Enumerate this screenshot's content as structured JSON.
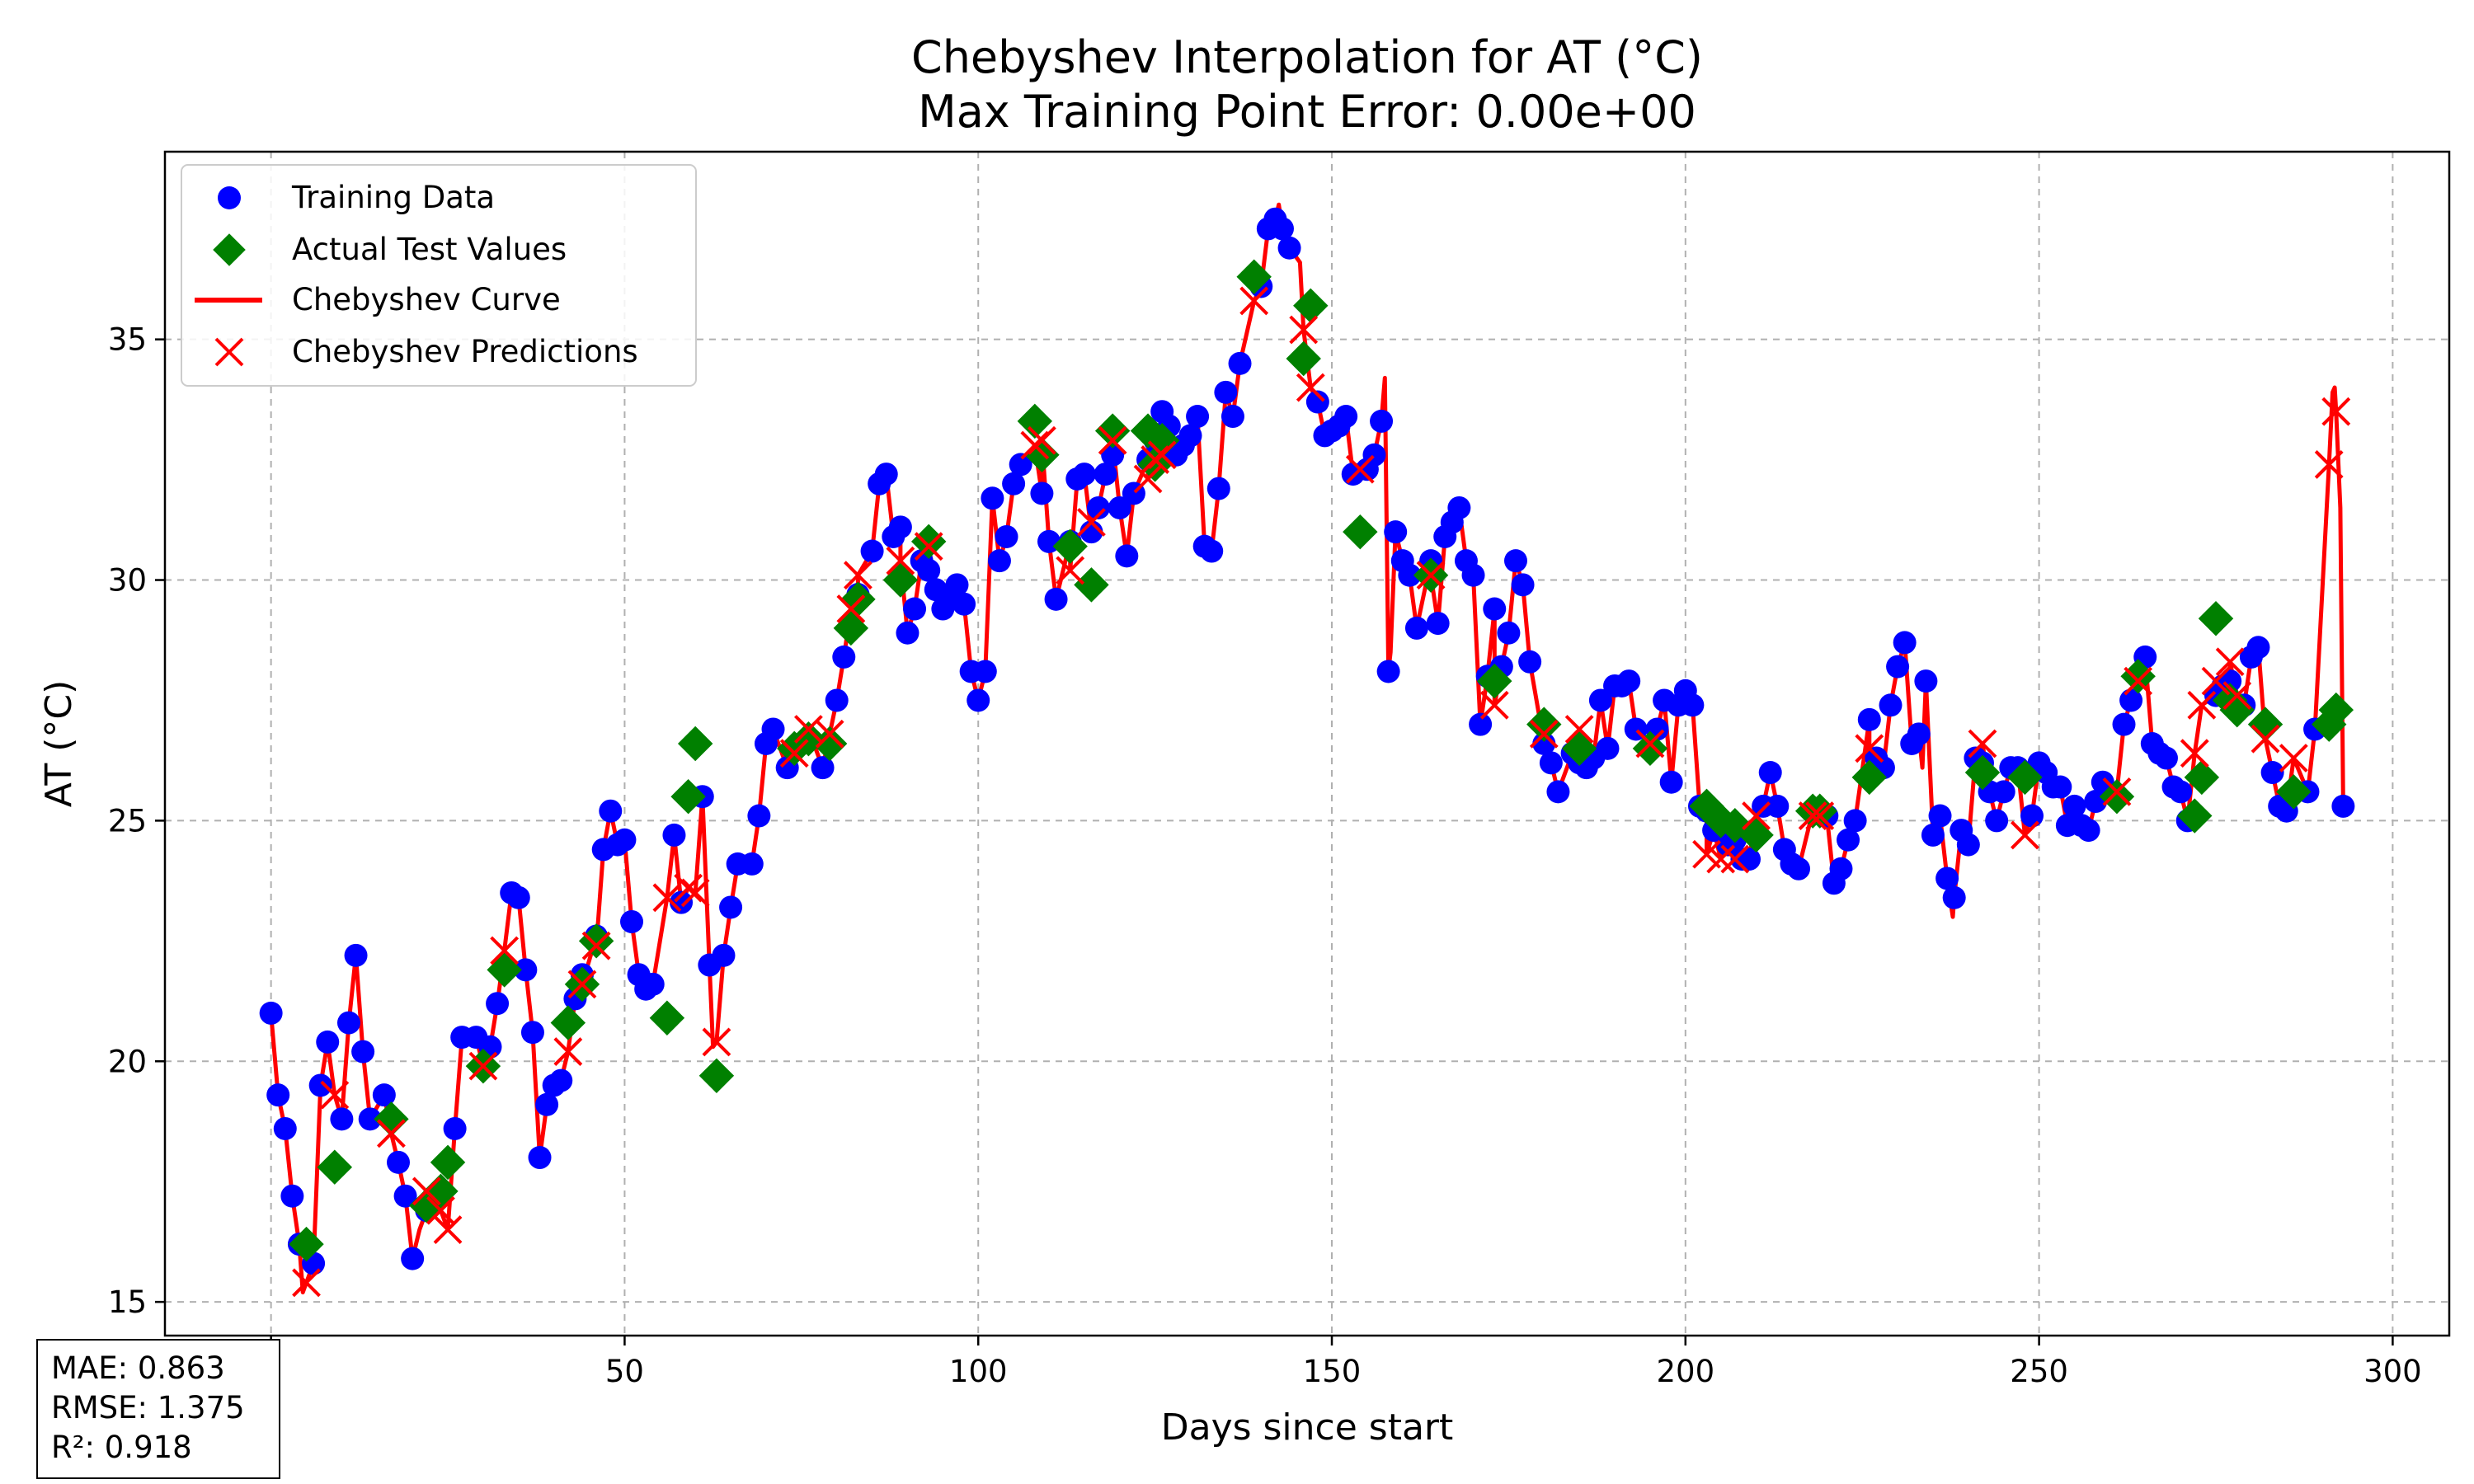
{
  "chart_data": {
    "type": "line",
    "title": "Chebyshev Interpolation for AT (°C)",
    "subtitle": "Max Training Point Error: 0.00e+00",
    "xlabel": "Days since start",
    "ylabel": "AT (°C)",
    "xlim": [
      -15,
      308
    ],
    "ylim": [
      14.3,
      38.9
    ],
    "xticks": [
      0,
      50,
      100,
      150,
      200,
      250,
      300
    ],
    "xtick_labels": [
      "0",
      "50",
      "100",
      "150",
      "200",
      "250",
      "300"
    ],
    "yticks": [
      15,
      20,
      25,
      30,
      35
    ],
    "ytick_labels": [
      "15",
      "20",
      "25",
      "30",
      "35"
    ],
    "grid": true,
    "legend_position": "top-left",
    "legend": [
      "Training Data",
      "Actual Test Values",
      "Chebyshev Curve",
      "Chebyshev Predictions"
    ],
    "colors": {
      "training": "#0000ff",
      "test": "#008000",
      "curve": "#ff0000",
      "predictions": "#ff0000",
      "grid": "#b0b0b0"
    },
    "training_data": [
      [
        0,
        21.0
      ],
      [
        1,
        19.3
      ],
      [
        2,
        18.6
      ],
      [
        3,
        17.2
      ],
      [
        4,
        16.2
      ],
      [
        6,
        15.8
      ],
      [
        7,
        19.5
      ],
      [
        8,
        20.4
      ],
      [
        10,
        18.8
      ],
      [
        11,
        20.8
      ],
      [
        12,
        22.2
      ],
      [
        13,
        20.2
      ],
      [
        14,
        18.8
      ],
      [
        16,
        19.3
      ],
      [
        18,
        17.9
      ],
      [
        19,
        17.2
      ],
      [
        20,
        15.9
      ],
      [
        22,
        16.9
      ],
      [
        24,
        17.2
      ],
      [
        26,
        18.6
      ],
      [
        27,
        20.5
      ],
      [
        29,
        20.5
      ],
      [
        31,
        20.3
      ],
      [
        32,
        21.2
      ],
      [
        34,
        23.5
      ],
      [
        35,
        23.4
      ],
      [
        36,
        21.9
      ],
      [
        37,
        20.6
      ],
      [
        38,
        18.0
      ],
      [
        39,
        19.1
      ],
      [
        40,
        19.5
      ],
      [
        41,
        19.6
      ],
      [
        43,
        21.3
      ],
      [
        44,
        21.8
      ],
      [
        46,
        22.6
      ],
      [
        47,
        24.4
      ],
      [
        48,
        25.2
      ],
      [
        49,
        24.5
      ],
      [
        50,
        24.6
      ],
      [
        51,
        22.9
      ],
      [
        52,
        21.8
      ],
      [
        53,
        21.5
      ],
      [
        54,
        21.6
      ],
      [
        57,
        24.7
      ],
      [
        58,
        23.3
      ],
      [
        61,
        25.5
      ],
      [
        62,
        22.0
      ],
      [
        64,
        22.2
      ],
      [
        65,
        23.2
      ],
      [
        66,
        24.1
      ],
      [
        68,
        24.1
      ],
      [
        69,
        25.1
      ],
      [
        70,
        26.6
      ],
      [
        71,
        26.9
      ],
      [
        73,
        26.1
      ],
      [
        74,
        26.5
      ],
      [
        78,
        26.1
      ],
      [
        80,
        27.5
      ],
      [
        81,
        28.4
      ],
      [
        83,
        29.7
      ],
      [
        85,
        30.6
      ],
      [
        86,
        32.0
      ],
      [
        87,
        32.2
      ],
      [
        88,
        30.9
      ],
      [
        89,
        31.1
      ],
      [
        90,
        28.9
      ],
      [
        91,
        29.4
      ],
      [
        92,
        30.4
      ],
      [
        93,
        30.2
      ],
      [
        94,
        29.8
      ],
      [
        95,
        29.4
      ],
      [
        96,
        29.7
      ],
      [
        97,
        29.9
      ],
      [
        98,
        29.5
      ],
      [
        99,
        28.1
      ],
      [
        100,
        27.5
      ],
      [
        101,
        28.1
      ],
      [
        102,
        31.7
      ],
      [
        103,
        30.4
      ],
      [
        104,
        30.9
      ],
      [
        105,
        32.0
      ],
      [
        106,
        32.4
      ],
      [
        109,
        31.8
      ],
      [
        110,
        30.8
      ],
      [
        111,
        29.6
      ],
      [
        113,
        30.8
      ],
      [
        114,
        32.1
      ],
      [
        115,
        32.2
      ],
      [
        116,
        31.0
      ],
      [
        117,
        31.5
      ],
      [
        118,
        32.2
      ],
      [
        119,
        32.6
      ],
      [
        120,
        31.5
      ],
      [
        121,
        30.5
      ],
      [
        122,
        31.8
      ],
      [
        124,
        32.5
      ],
      [
        125,
        32.9
      ],
      [
        126,
        33.5
      ],
      [
        127,
        33.2
      ],
      [
        128,
        32.6
      ],
      [
        129,
        32.8
      ],
      [
        130,
        33.0
      ],
      [
        131,
        33.4
      ],
      [
        132,
        30.7
      ],
      [
        133,
        30.6
      ],
      [
        134,
        31.9
      ],
      [
        135,
        33.9
      ],
      [
        136,
        33.4
      ],
      [
        137,
        34.5
      ],
      [
        140,
        36.1
      ],
      [
        141,
        37.3
      ],
      [
        142,
        37.5
      ],
      [
        143,
        37.3
      ],
      [
        144,
        36.9
      ],
      [
        148,
        33.7
      ],
      [
        149,
        33.0
      ],
      [
        150,
        33.1
      ],
      [
        151,
        33.2
      ],
      [
        152,
        33.4
      ],
      [
        153,
        32.2
      ],
      [
        155,
        32.3
      ],
      [
        156,
        32.6
      ],
      [
        157,
        33.3
      ],
      [
        158,
        28.1
      ],
      [
        159,
        31.0
      ],
      [
        160,
        30.4
      ],
      [
        161,
        30.1
      ],
      [
        162,
        29.0
      ],
      [
        164,
        30.4
      ],
      [
        165,
        29.1
      ],
      [
        166,
        30.9
      ],
      [
        167,
        31.2
      ],
      [
        168,
        31.5
      ],
      [
        169,
        30.4
      ],
      [
        170,
        30.1
      ],
      [
        171,
        27.0
      ],
      [
        172,
        28.0
      ],
      [
        173,
        29.4
      ],
      [
        174,
        28.2
      ],
      [
        175,
        28.9
      ],
      [
        176,
        30.4
      ],
      [
        177,
        29.9
      ],
      [
        178,
        28.3
      ],
      [
        180,
        26.6
      ],
      [
        181,
        26.2
      ],
      [
        182,
        25.6
      ],
      [
        184,
        26.4
      ],
      [
        185,
        26.2
      ],
      [
        186,
        26.1
      ],
      [
        187,
        26.3
      ],
      [
        188,
        27.5
      ],
      [
        189,
        26.5
      ],
      [
        190,
        27.8
      ],
      [
        191,
        27.8
      ],
      [
        192,
        27.9
      ],
      [
        193,
        26.9
      ],
      [
        196,
        26.9
      ],
      [
        197,
        27.5
      ],
      [
        198,
        25.8
      ],
      [
        199,
        27.4
      ],
      [
        200,
        27.7
      ],
      [
        201,
        27.4
      ],
      [
        202,
        25.3
      ],
      [
        203,
        25.2
      ],
      [
        204,
        24.8
      ],
      [
        206,
        24.5
      ],
      [
        207,
        24.6
      ],
      [
        208,
        24.2
      ],
      [
        209,
        24.2
      ],
      [
        211,
        25.3
      ],
      [
        212,
        26.0
      ],
      [
        213,
        25.3
      ],
      [
        214,
        24.4
      ],
      [
        215,
        24.1
      ],
      [
        216,
        24.0
      ],
      [
        218,
        25.2
      ],
      [
        220,
        25.1
      ],
      [
        221,
        23.7
      ],
      [
        222,
        24.0
      ],
      [
        223,
        24.6
      ],
      [
        224,
        25.0
      ],
      [
        226,
        27.1
      ],
      [
        227,
        26.3
      ],
      [
        228,
        26.1
      ],
      [
        229,
        27.4
      ],
      [
        230,
        28.2
      ],
      [
        231,
        28.7
      ],
      [
        232,
        26.6
      ],
      [
        233,
        26.8
      ],
      [
        234,
        27.9
      ],
      [
        235,
        24.7
      ],
      [
        236,
        25.1
      ],
      [
        237,
        23.8
      ],
      [
        238,
        23.4
      ],
      [
        239,
        24.8
      ],
      [
        240,
        24.5
      ],
      [
        241,
        26.3
      ],
      [
        242,
        26.2
      ],
      [
        243,
        25.6
      ],
      [
        244,
        25.0
      ],
      [
        245,
        25.6
      ],
      [
        246,
        26.1
      ],
      [
        247,
        26.1
      ],
      [
        249,
        25.1
      ],
      [
        250,
        26.2
      ],
      [
        251,
        26.0
      ],
      [
        252,
        25.7
      ],
      [
        253,
        25.7
      ],
      [
        254,
        24.9
      ],
      [
        255,
        25.3
      ],
      [
        256,
        24.9
      ],
      [
        257,
        24.8
      ],
      [
        258,
        25.4
      ],
      [
        259,
        25.8
      ],
      [
        262,
        27.0
      ],
      [
        263,
        27.5
      ],
      [
        265,
        28.4
      ],
      [
        266,
        26.6
      ],
      [
        267,
        26.4
      ],
      [
        268,
        26.3
      ],
      [
        269,
        25.7
      ],
      [
        270,
        25.6
      ],
      [
        271,
        25.0
      ],
      [
        275,
        27.6
      ],
      [
        276,
        27.8
      ],
      [
        277,
        27.9
      ],
      [
        279,
        27.4
      ],
      [
        280,
        28.4
      ],
      [
        281,
        28.6
      ],
      [
        283,
        26.0
      ],
      [
        284,
        25.3
      ],
      [
        285,
        25.2
      ],
      [
        288,
        25.6
      ],
      [
        289,
        26.9
      ],
      [
        293,
        25.3
      ]
    ],
    "test_values": [
      [
        5,
        16.2
      ],
      [
        9,
        17.8
      ],
      [
        17,
        18.8
      ],
      [
        22,
        17.0
      ],
      [
        24,
        17.3
      ],
      [
        25,
        17.9
      ],
      [
        30,
        19.9
      ],
      [
        33,
        21.9
      ],
      [
        42,
        20.8
      ],
      [
        44,
        21.6
      ],
      [
        46,
        22.5
      ],
      [
        56,
        20.9
      ],
      [
        59,
        25.5
      ],
      [
        60,
        26.6
      ],
      [
        63,
        19.7
      ],
      [
        74,
        26.5
      ],
      [
        76,
        26.7
      ],
      [
        79,
        26.6
      ],
      [
        82,
        29.0
      ],
      [
        83,
        29.6
      ],
      [
        89,
        30.0
      ],
      [
        93,
        30.8
      ],
      [
        108,
        33.3
      ],
      [
        109,
        32.6
      ],
      [
        113,
        30.7
      ],
      [
        116,
        29.9
      ],
      [
        119,
        33.1
      ],
      [
        124,
        33.1
      ],
      [
        125,
        32.4
      ],
      [
        126,
        32.9
      ],
      [
        139,
        36.3
      ],
      [
        146,
        34.6
      ],
      [
        147,
        35.7
      ],
      [
        154,
        31.0
      ],
      [
        164,
        30.1
      ],
      [
        173,
        27.9
      ],
      [
        180,
        27.0
      ],
      [
        185,
        26.5
      ],
      [
        195,
        26.5
      ],
      [
        203,
        25.3
      ],
      [
        205,
        25.0
      ],
      [
        207,
        24.9
      ],
      [
        210,
        24.7
      ],
      [
        218,
        25.2
      ],
      [
        219,
        25.2
      ],
      [
        226,
        25.9
      ],
      [
        242,
        26.0
      ],
      [
        248,
        25.9
      ],
      [
        261,
        25.5
      ],
      [
        264,
        28.0
      ],
      [
        272,
        25.1
      ],
      [
        273,
        25.9
      ],
      [
        275,
        29.2
      ],
      [
        277,
        27.5
      ],
      [
        278,
        27.3
      ],
      [
        282,
        27.0
      ],
      [
        286,
        25.6
      ],
      [
        291,
        27.0
      ],
      [
        292,
        27.3
      ]
    ],
    "predictions": [
      [
        5,
        15.4
      ],
      [
        9,
        19.3
      ],
      [
        17,
        18.5
      ],
      [
        22,
        17.3
      ],
      [
        24,
        16.9
      ],
      [
        25,
        16.5
      ],
      [
        30,
        19.9
      ],
      [
        33,
        22.3
      ],
      [
        42,
        20.2
      ],
      [
        44,
        21.6
      ],
      [
        46,
        22.4
      ],
      [
        56,
        23.4
      ],
      [
        59,
        23.6
      ],
      [
        60,
        23.5
      ],
      [
        63,
        20.4
      ],
      [
        74,
        26.4
      ],
      [
        76,
        26.9
      ],
      [
        79,
        26.8
      ],
      [
        82,
        29.4
      ],
      [
        83,
        30.1
      ],
      [
        89,
        30.4
      ],
      [
        93,
        30.7
      ],
      [
        108,
        32.8
      ],
      [
        109,
        32.9
      ],
      [
        113,
        30.2
      ],
      [
        116,
        31.2
      ],
      [
        119,
        32.9
      ],
      [
        124,
        32.1
      ],
      [
        125,
        32.5
      ],
      [
        126,
        32.6
      ],
      [
        139,
        35.8
      ],
      [
        146,
        35.2
      ],
      [
        147,
        34.0
      ],
      [
        154,
        32.3
      ],
      [
        164,
        30.1
      ],
      [
        173,
        27.4
      ],
      [
        180,
        26.8
      ],
      [
        185,
        26.9
      ],
      [
        195,
        26.6
      ],
      [
        203,
        24.3
      ],
      [
        205,
        24.2
      ],
      [
        207,
        24.2
      ],
      [
        210,
        25.1
      ],
      [
        218,
        25.1
      ],
      [
        219,
        25.1
      ],
      [
        226,
        26.5
      ],
      [
        242,
        26.6
      ],
      [
        248,
        24.7
      ],
      [
        261,
        25.6
      ],
      [
        264,
        27.9
      ],
      [
        272,
        26.4
      ],
      [
        273,
        27.4
      ],
      [
        275,
        27.9
      ],
      [
        277,
        28.3
      ],
      [
        278,
        27.6
      ],
      [
        282,
        26.7
      ],
      [
        286,
        26.3
      ],
      [
        291,
        32.4
      ],
      [
        292,
        33.5
      ]
    ],
    "curve_extra": [
      [
        4.5,
        15.2
      ],
      [
        10.5,
        19.8
      ],
      [
        21,
        16.5
      ],
      [
        62.5,
        20.3
      ],
      [
        142.5,
        37.8
      ],
      [
        145.5,
        36.6
      ],
      [
        157.5,
        34.2
      ],
      [
        158.3,
        28.5
      ],
      [
        233.5,
        26.1
      ],
      [
        237.8,
        23.0
      ],
      [
        291.5,
        33.9
      ],
      [
        291.8,
        34.0
      ],
      [
        292.6,
        31.5
      ]
    ],
    "annotation_stats": [
      "MAE: 0.863",
      "RMSE: 1.375",
      "R²: 0.918"
    ]
  }
}
